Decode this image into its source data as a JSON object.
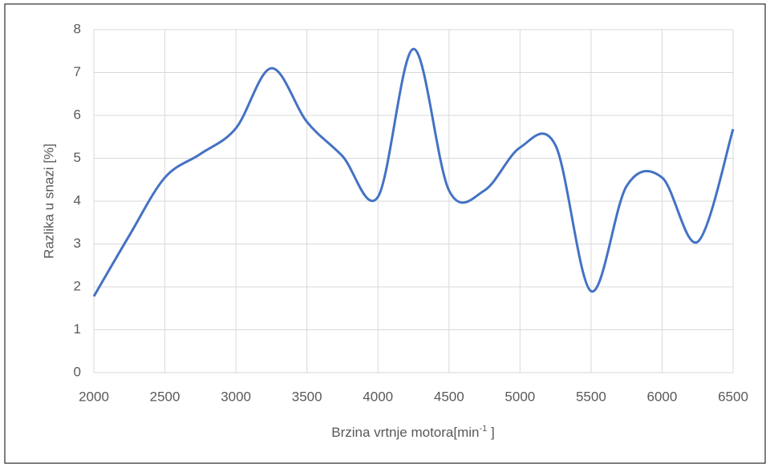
{
  "chart_data": {
    "type": "line",
    "x_label": {
      "text": "Brzina vrtnje motora[min",
      "sup": "-1",
      "end": " ]"
    },
    "y_label": "Razlika u snazi [%]",
    "x": [
      2000,
      2250,
      2500,
      2750,
      3000,
      3250,
      3500,
      3750,
      4000,
      4250,
      4500,
      4750,
      5000,
      5250,
      5500,
      5750,
      6000,
      6250,
      6500
    ],
    "series": [
      {
        "name": "Razlika u snazi",
        "color": "#4472c4",
        "values": [
          1.78,
          3.2,
          4.55,
          5.1,
          5.7,
          7.1,
          5.85,
          5.05,
          4.1,
          7.55,
          4.25,
          4.25,
          5.25,
          5.3,
          1.9,
          4.35,
          4.55,
          3.05,
          5.68
        ]
      }
    ],
    "xlim": [
      2000,
      6500
    ],
    "xticks": [
      2000,
      2500,
      3000,
      3500,
      4000,
      4500,
      5000,
      5500,
      6000,
      6500
    ],
    "ylim": [
      0,
      8
    ],
    "yticks": [
      0,
      1,
      2,
      3,
      4,
      5,
      6,
      7,
      8
    ],
    "grid": true,
    "smooth": true
  }
}
